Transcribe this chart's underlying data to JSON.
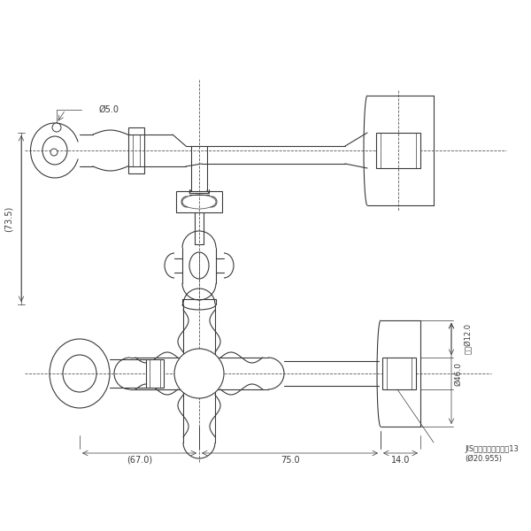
{
  "bg_color": "#ffffff",
  "lc": "#3a3a3a",
  "lw": 0.8,
  "tlw": 0.5,
  "dlw": 0.5,
  "figsize": [
    6.0,
    6.0
  ],
  "dpi": 100,
  "ann": {
    "phi5": "Ø5.0",
    "height73": "(73.5)",
    "phi12": "外径Ø12.0",
    "phi46": "Ø46.0",
    "jis": "JIS給水栓取付ねじ＀13",
    "phi20": "(Ø20.955)",
    "dim67": "(67.0)",
    "dim75": "75.0",
    "dim14": "14.0"
  }
}
